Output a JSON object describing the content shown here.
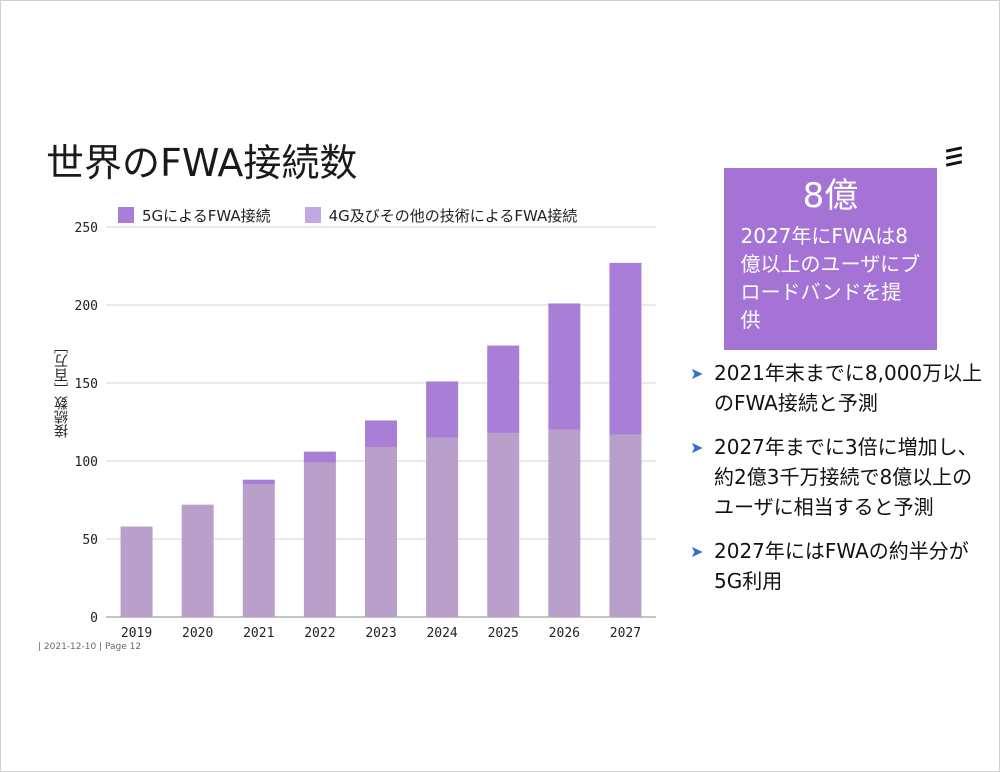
{
  "slide": {
    "title": "世界のFWA接続数",
    "footer": "| 2021-12-10 | Page 12",
    "logo_icon": "ericsson-logo"
  },
  "callout": {
    "big": "8億",
    "text": "2027年にFWAは8億以上のユーザにブロードバンドを提供",
    "color": "#a573d6"
  },
  "bullets": [
    "2021年末までに8,000万以上のFWA接続と予測",
    "2027年までに3倍に増加し、約2億3千万接続で8億以上のユーザに相当すると予測",
    "2027年にはFWAの約半分が5G利用"
  ],
  "chart_data": {
    "type": "bar",
    "stacked": true,
    "categories": [
      "2019",
      "2020",
      "2021",
      "2022",
      "2023",
      "2024",
      "2025",
      "2026",
      "2027"
    ],
    "series": [
      {
        "name": "4G及びその他の技術によるFWA接続",
        "color": "#b9a0cb",
        "values": [
          58,
          72,
          85,
          99,
          109,
          115,
          118,
          120,
          117
        ]
      },
      {
        "name": "5GによるFWA接続",
        "color": "#a97ed6",
        "values": [
          0,
          0,
          3,
          7,
          17,
          36,
          56,
          81,
          110
        ]
      }
    ],
    "legend_order": [
      "5GによるFWA接続",
      "4G及びその他の技術によるFWA接続"
    ],
    "ylabel": "接続数［百万］",
    "ylim": [
      0,
      250
    ],
    "yticks": [
      0,
      50,
      100,
      150,
      200,
      250
    ],
    "grid": true,
    "legend_position": "top"
  }
}
